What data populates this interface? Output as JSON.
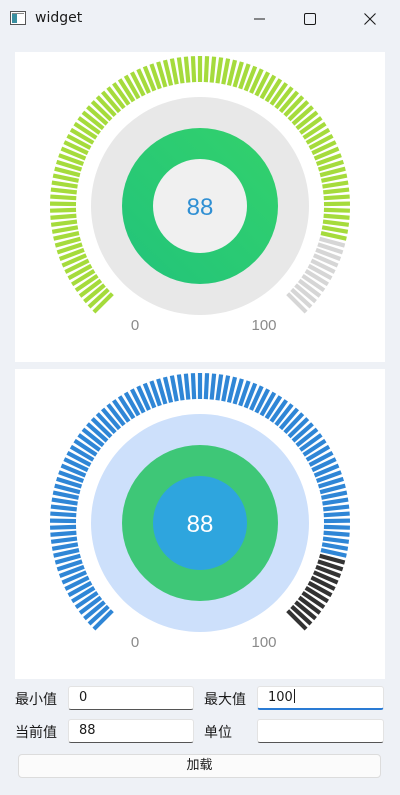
{
  "window": {
    "title": "widget"
  },
  "gauges": [
    {
      "id": "gauge-1",
      "value": 88,
      "min": 0,
      "max": 100,
      "value_text": "88",
      "min_label": "0",
      "max_label": "100",
      "colors": {
        "tick_active": "#a5db3c",
        "tick_inactive": "#d6d6d6",
        "outer_circle": "#e8e8e8",
        "ring_start": "#22c47a",
        "ring_end": "#33d16c",
        "inner_circle": "#f0f0f0",
        "value_text": "#2f8fd3",
        "label_text": "#8a8a8a"
      }
    },
    {
      "id": "gauge-2",
      "value": 88,
      "min": 0,
      "max": 100,
      "value_text": "88",
      "min_label": "0",
      "max_label": "100",
      "colors": {
        "tick_active": "#2f86d6",
        "tick_inactive": "#333333",
        "outer_circle": "#cde0fb",
        "ring_start": "#3ec777",
        "ring_end": "#3ec777",
        "inner_circle": "#2ea5de",
        "value_text": "#ffffff",
        "label_text": "#8a8a8a"
      }
    }
  ],
  "form": {
    "min_label": "最小值",
    "min_value": "0",
    "max_label": "最大值",
    "max_value": "100",
    "current_label": "当前值",
    "current_value": "88",
    "unit_label": "单位",
    "unit_value": "",
    "load_button": "加载"
  }
}
